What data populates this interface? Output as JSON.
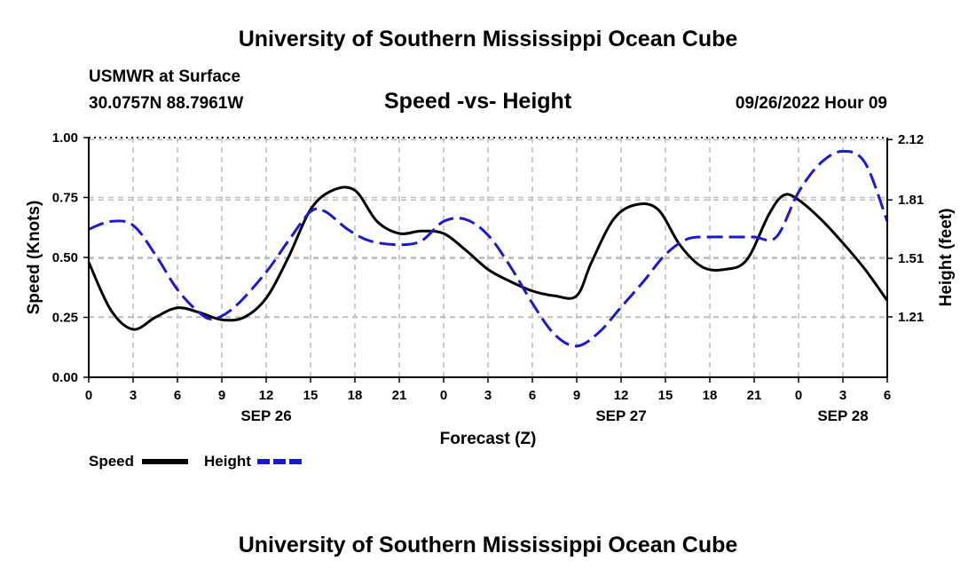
{
  "header": {
    "title": "University of Southern Mississippi Ocean Cube",
    "station": "USMWR at Surface",
    "location": "30.0757N  88.7961W",
    "chart_title": "Speed -vs- Height",
    "date": "09/26/2022 Hour 09"
  },
  "footer": {
    "title": "University of Southern Mississippi Ocean Cube"
  },
  "colors": {
    "speed": "#000000",
    "height": "#1a1acc",
    "grid": "#bbbbbb"
  },
  "chart_data": {
    "type": "line",
    "title": "Speed -vs- Height",
    "xlabel": "Forecast (Z)",
    "ylabel": "Speed (Knots)",
    "y2label": "Height (feet)",
    "xlim": [
      0,
      54
    ],
    "ylim": [
      0,
      1
    ],
    "y2lim": [
      0.9,
      2.13
    ],
    "x_ticks": [
      0,
      3,
      6,
      9,
      12,
      15,
      18,
      21,
      24,
      27,
      30,
      33,
      36,
      39,
      42,
      45,
      48,
      51,
      54
    ],
    "x_tick_labels": [
      "0",
      "3",
      "6",
      "9",
      "12",
      "15",
      "18",
      "21",
      "0",
      "3",
      "6",
      "9",
      "12",
      "15",
      "18",
      "21",
      "0",
      "3",
      "6"
    ],
    "date_labels": [
      {
        "x": 12,
        "label": "SEP 26"
      },
      {
        "x": 36,
        "label": "SEP 27"
      },
      {
        "x": 51,
        "label": "SEP 28"
      }
    ],
    "y_ticks": [
      0,
      0.25,
      0.5,
      0.75,
      1.0
    ],
    "y_tick_labels": [
      "0.00",
      "0.25",
      "0.50",
      "0.75",
      "1.00"
    ],
    "y2_ticks": [
      1.21,
      1.51,
      1.81,
      2.12
    ],
    "y2_tick_labels": [
      "1.21",
      "1.51",
      "1.81",
      "2.12"
    ],
    "grid": true,
    "legend_position": "bottom-left",
    "series": [
      {
        "name": "Speed",
        "axis": "left",
        "style": "solid",
        "x": [
          0,
          1.5,
          3,
          4.5,
          6,
          7.5,
          9,
          10.5,
          12,
          13.5,
          15,
          16.5,
          18,
          19.5,
          21,
          22.5,
          24,
          25.5,
          27,
          28.5,
          30,
          31.5,
          33,
          34,
          35.5,
          37,
          38.5,
          40,
          41.5,
          43,
          44.5,
          46,
          47,
          48,
          49.5,
          51,
          52.5,
          54
        ],
        "values": [
          0.48,
          0.28,
          0.2,
          0.25,
          0.29,
          0.27,
          0.24,
          0.25,
          0.33,
          0.5,
          0.7,
          0.78,
          0.78,
          0.65,
          0.6,
          0.61,
          0.6,
          0.53,
          0.45,
          0.4,
          0.36,
          0.34,
          0.34,
          0.48,
          0.66,
          0.72,
          0.7,
          0.55,
          0.46,
          0.45,
          0.49,
          0.68,
          0.76,
          0.74,
          0.66,
          0.56,
          0.45,
          0.32
        ]
      },
      {
        "name": "Height",
        "axis": "right",
        "style": "dashed",
        "x": [
          0,
          1.5,
          3,
          4.5,
          6,
          7.5,
          8.5,
          10,
          12,
          13.5,
          15,
          16,
          17.5,
          19,
          21,
          22.5,
          24,
          25.5,
          27,
          28.5,
          30,
          31.5,
          33,
          34.5,
          36,
          37.5,
          39,
          40.5,
          42,
          43.5,
          45,
          46.5,
          48,
          49.5,
          51,
          52.5,
          54
        ],
        "values": [
          1.66,
          1.7,
          1.68,
          1.53,
          1.35,
          1.23,
          1.2,
          1.27,
          1.44,
          1.6,
          1.75,
          1.75,
          1.66,
          1.6,
          1.58,
          1.6,
          1.7,
          1.71,
          1.63,
          1.47,
          1.28,
          1.12,
          1.06,
          1.13,
          1.26,
          1.39,
          1.53,
          1.61,
          1.62,
          1.62,
          1.62,
          1.62,
          1.85,
          2.0,
          2.06,
          2.0,
          1.7
        ]
      }
    ]
  }
}
